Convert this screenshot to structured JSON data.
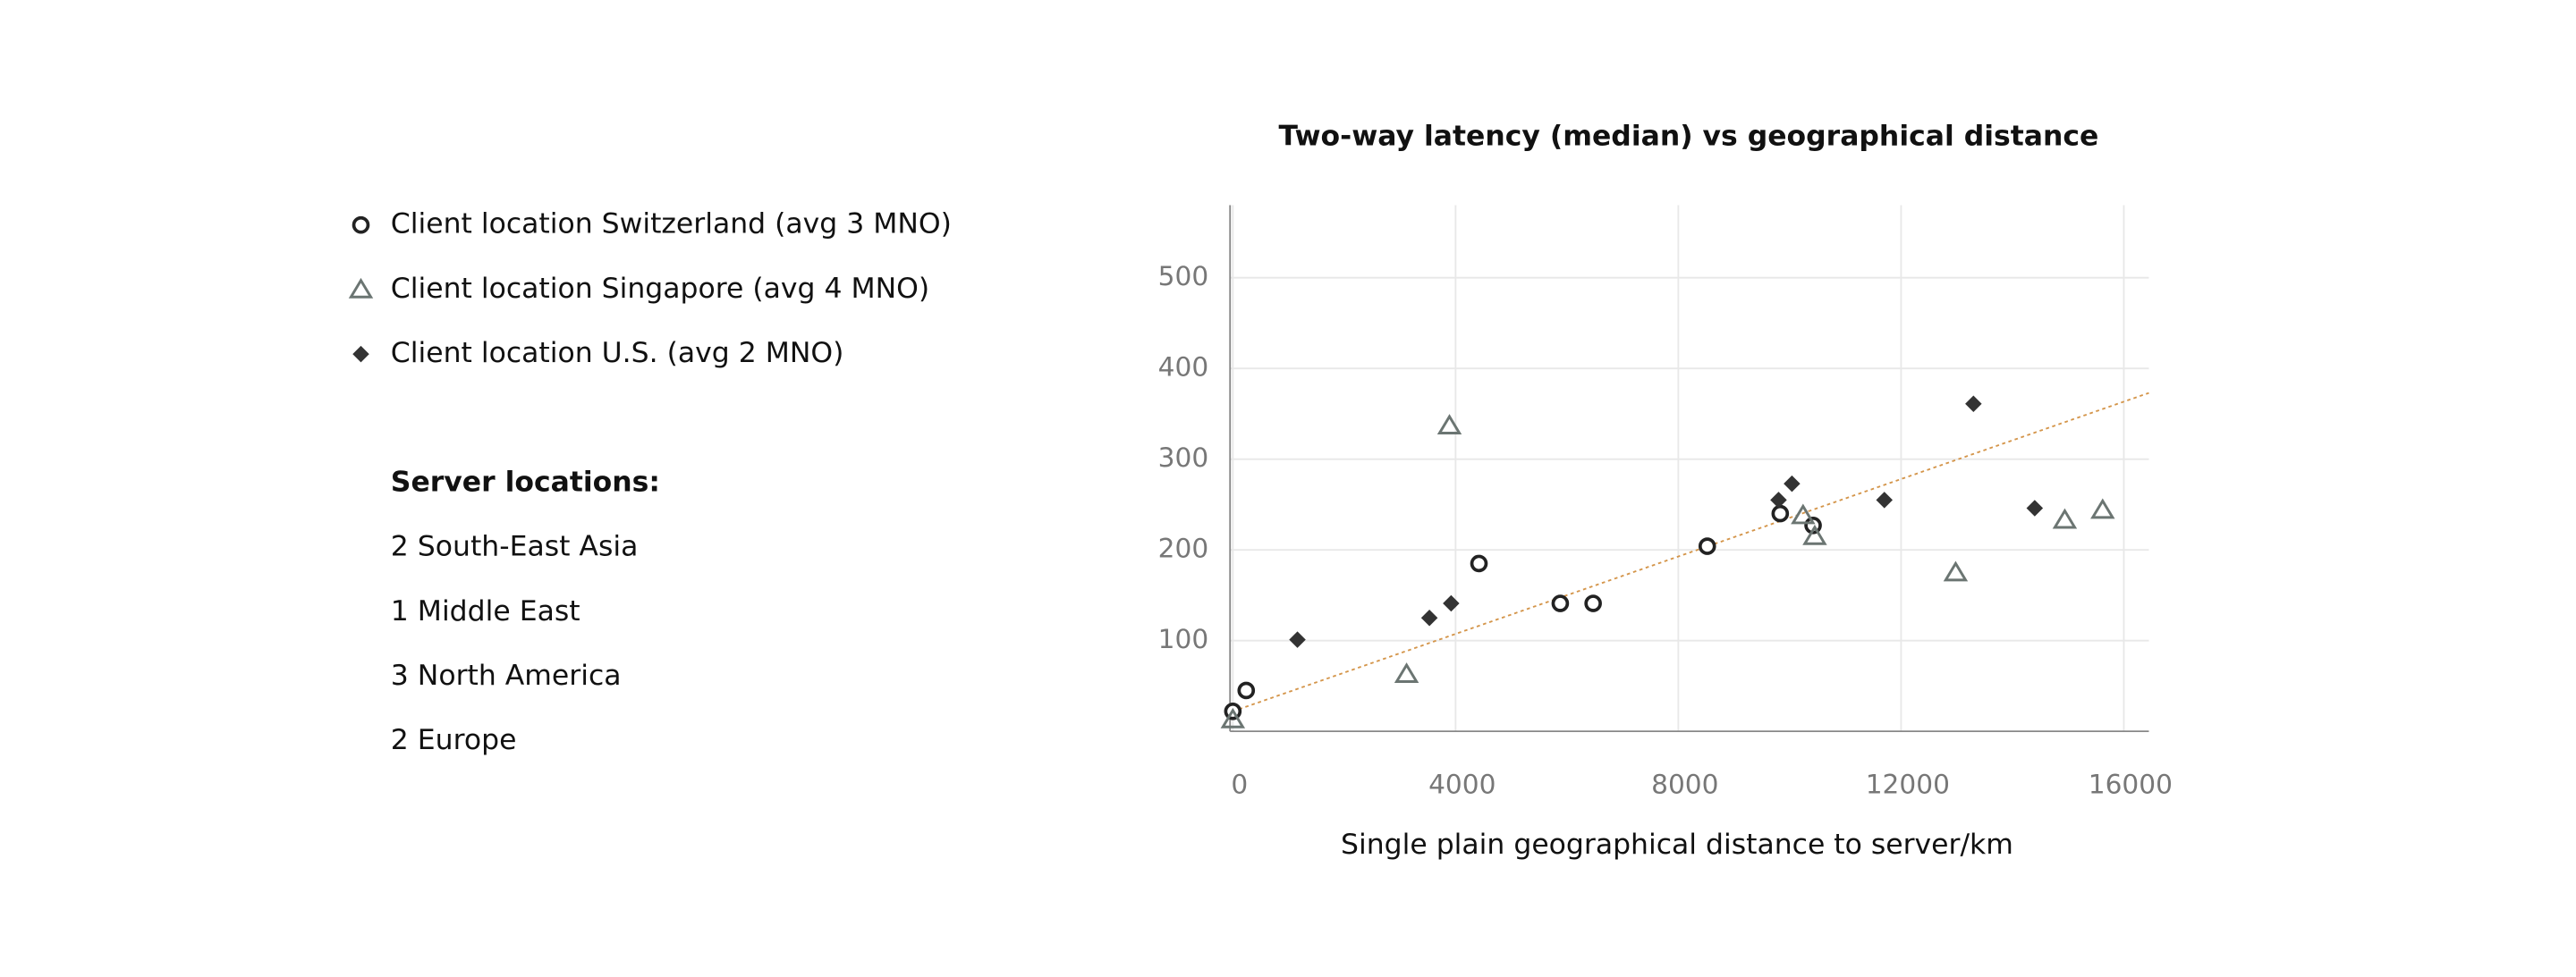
{
  "chart_data": {
    "type": "scatter",
    "title": "Two-way latency (median) vs geographical distance",
    "x_label": "Single plain geographical distance to server/km",
    "xlim": [
      -50,
      16450
    ],
    "ylim": [
      0,
      580
    ],
    "xticks": [
      0,
      4000,
      8000,
      12000,
      16000
    ],
    "yticks": [
      100,
      200,
      300,
      400,
      500
    ],
    "grid": true,
    "series": [
      {
        "name": "Client location Switzerland (avg 3 MNO)",
        "color": "#222222",
        "marker": "circle",
        "x": [
          0,
          240,
          4420,
          5880,
          6470,
          8520,
          9830,
          10420
        ],
        "values": [
          22,
          45,
          185,
          141,
          141,
          204,
          240,
          227
        ]
      },
      {
        "name": "Client location Singapore (avg 4 MNO)",
        "color": "#6b7572",
        "marker": "triangle",
        "x": [
          0,
          3120,
          3890,
          10240,
          10450,
          12980,
          14940,
          15620
        ],
        "values": [
          13,
          63,
          337,
          238,
          215,
          175,
          233,
          244
        ]
      },
      {
        "name": "Client location U.S. (avg 2 MNO)",
        "color": "#333333",
        "marker": "diamond",
        "x": [
          1160,
          3530,
          3920,
          9800,
          10040,
          11700,
          13300,
          14400
        ],
        "values": [
          101,
          125,
          141,
          255,
          273,
          255,
          361,
          246
        ]
      }
    ],
    "trendline": {
      "x": [
        0,
        16450
      ],
      "values": [
        22,
        373
      ],
      "color": "#d4954a"
    }
  },
  "server_locations": {
    "title": "Server locations:",
    "items": [
      "2 South-East Asia",
      "1 Middle East",
      "3 North America",
      "2 Europe"
    ]
  }
}
